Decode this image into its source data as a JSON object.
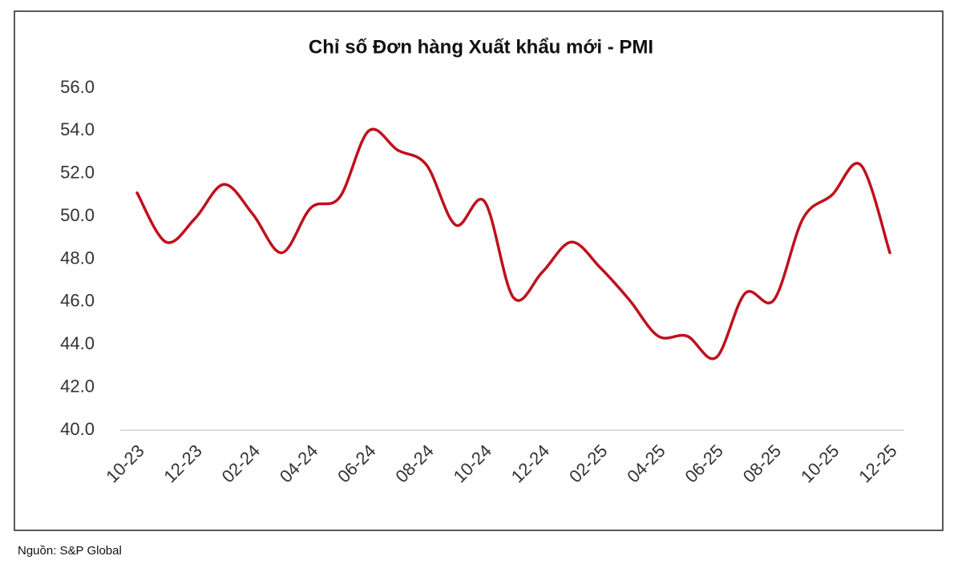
{
  "chart_data": {
    "type": "line",
    "title": "Chỉ số Đơn hàng Xuất khẩu mới - PMI",
    "categories": [
      "10-23",
      null,
      "12-23",
      null,
      "02-24",
      null,
      "04-24",
      null,
      "06-24",
      null,
      "08-24",
      null,
      "10-24",
      null,
      "12-24",
      null,
      "02-25",
      null,
      "04-25",
      null,
      "06-25",
      null,
      "08-25",
      null,
      "10-25",
      null,
      "12-25"
    ],
    "series": [
      {
        "name": "PMI",
        "color": "#c0101d",
        "values": [
          51.1,
          48.8,
          49.9,
          51.5,
          50.1,
          48.3,
          50.4,
          50.9,
          54.0,
          53.1,
          52.4,
          49.6,
          50.7,
          46.2,
          47.4,
          48.8,
          47.6,
          46.1,
          44.4,
          44.4,
          43.4,
          46.4,
          46.1,
          49.9,
          51.0,
          52.4,
          48.3
        ]
      }
    ],
    "ylim": [
      40,
      56
    ],
    "yticks": [
      {
        "value": 40,
        "label": "40.0"
      },
      {
        "value": 42,
        "label": "42.0"
      },
      {
        "value": 44,
        "label": "44.0"
      },
      {
        "value": 46,
        "label": "46.0"
      },
      {
        "value": 48,
        "label": "48.0"
      },
      {
        "value": 50,
        "label": "50.0"
      },
      {
        "value": 52,
        "label": "52.0"
      },
      {
        "value": 54,
        "label": "54.0"
      },
      {
        "value": 56,
        "label": "56.0"
      }
    ],
    "source": "Nguồn: S&P Global"
  }
}
